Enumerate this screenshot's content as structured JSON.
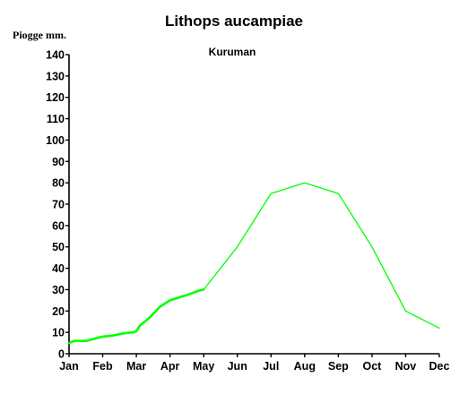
{
  "chart_data": {
    "type": "line",
    "title": "Lithops aucampiae",
    "subtitle": "Kuruman",
    "ylabel": "Piogge mm.",
    "xlabel": "",
    "categories": [
      "Jan",
      "Feb",
      "Mar",
      "Apr",
      "May",
      "Jun",
      "Jul",
      "Aug",
      "Sep",
      "Oct",
      "Nov",
      "Dec"
    ],
    "yticks": [
      0,
      10,
      20,
      30,
      40,
      50,
      60,
      70,
      80,
      90,
      100,
      110,
      120,
      130,
      140
    ],
    "ylim": [
      0,
      140
    ],
    "grid": false,
    "series": [
      {
        "color": "#00ff00",
        "x": [
          1,
          1.15,
          1.5,
          2.0,
          2.3,
          2.6,
          2.9,
          3.0,
          3.1,
          3.4,
          3.7,
          4.0,
          4.3,
          4.6,
          4.85,
          5.0,
          6.0,
          7.0,
          8.0,
          9.0,
          10.0,
          11.0,
          12.0
        ],
        "values": [
          5,
          6,
          6,
          8,
          8.5,
          9.5,
          10,
          10.5,
          13,
          17,
          22,
          25,
          26.5,
          28,
          29.5,
          30,
          50,
          75,
          80,
          75,
          50,
          20,
          12
        ]
      }
    ]
  }
}
